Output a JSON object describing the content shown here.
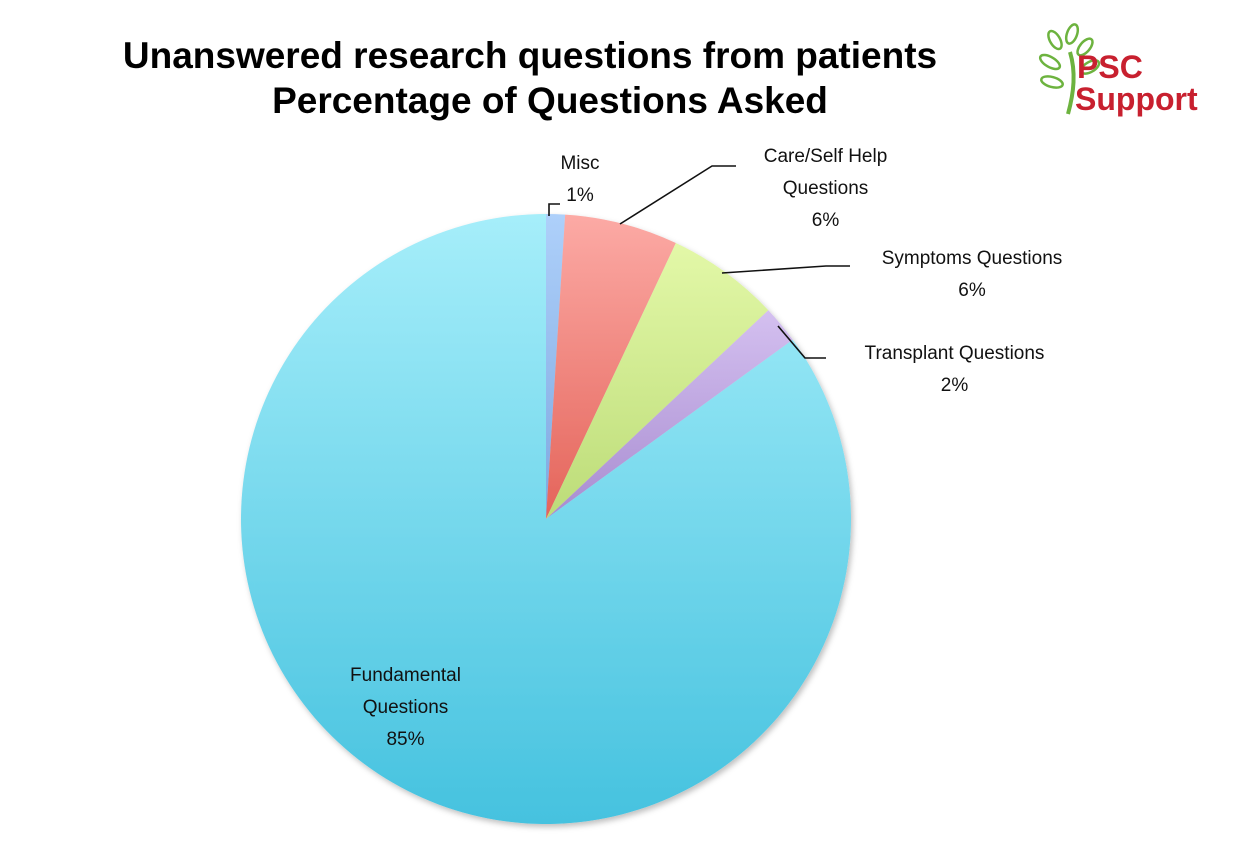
{
  "title": {
    "line1": "Unanswered research questions from patients",
    "line2": "Percentage of Questions Asked"
  },
  "logo": {
    "line1": "PSC",
    "line2": "Support",
    "icon": "tree-leaf-icon",
    "text_color": "#c8202f",
    "icon_color": "#6db33f"
  },
  "labels": {
    "misc": {
      "name": "Misc",
      "pct": "1%"
    },
    "care": {
      "name1": "Care/Self Help",
      "name2": "Questions",
      "pct": "6%"
    },
    "symptoms": {
      "name": "Symptoms Questions",
      "pct": "6%"
    },
    "transplant": {
      "name": "Transplant Questions",
      "pct": "2%"
    },
    "fundamental": {
      "name1": "Fundamental",
      "name2": "Questions",
      "pct": "85%"
    }
  },
  "chart_data": {
    "type": "pie",
    "title": "Unanswered research questions from patients — Percentage of Questions Asked",
    "start_angle": "12 o'clock, clockwise",
    "categories": [
      "Misc",
      "Care/Self Help Questions",
      "Symptoms Questions",
      "Transplant Questions",
      "Fundamental Questions"
    ],
    "values": [
      1,
      6,
      6,
      2,
      85
    ],
    "unit": "%",
    "colors": [
      "#9cc3f5",
      "#f08a82",
      "#d2ec96",
      "#c0a8e2",
      "#6ad4ec"
    ],
    "legend": "none (data labels with leader lines)"
  }
}
